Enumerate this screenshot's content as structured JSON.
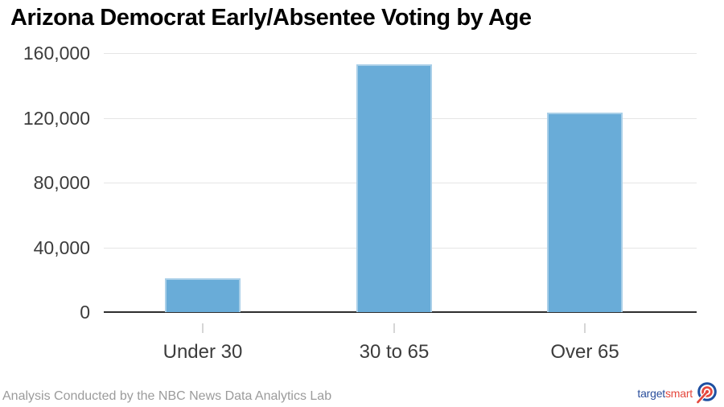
{
  "title": "Arizona Democrat Early/Absentee Voting by Age",
  "footer": {
    "credit": "Analysis Conducted by the NBC News Data Analytics Lab"
  },
  "logo": {
    "part1": "target",
    "part2": "smart",
    "icon": "bullseye-target-icon"
  },
  "colors": {
    "bar": "#69acd8",
    "bar_border": "#a9cfe8",
    "axis_line": "#2e2e2e",
    "gridline": "#e5e5e5",
    "tick": "#d6d6d6",
    "tick_label": "#3c3c3c",
    "title": "#000000",
    "footer_text": "#9b9b9b",
    "logo_blue": "#2a4e9b",
    "logo_red": "#e5483d"
  },
  "chart_data": {
    "type": "bar",
    "title": "Arizona Democrat Early/Absentee Voting by Age",
    "categories": [
      "Under 30",
      "30 to 65",
      "Over 65"
    ],
    "values": [
      21000,
      153000,
      123000
    ],
    "xlabel": "",
    "ylabel": "",
    "ylim": [
      0,
      160000
    ],
    "yticks": [
      0,
      40000,
      80000,
      120000,
      160000
    ],
    "ytick_labels": [
      "0",
      "40,000",
      "80,000",
      "120,000",
      "160,000"
    ],
    "grid": true,
    "legend": false,
    "source": "Analysis Conducted by the NBC News Data Analytics Lab"
  }
}
